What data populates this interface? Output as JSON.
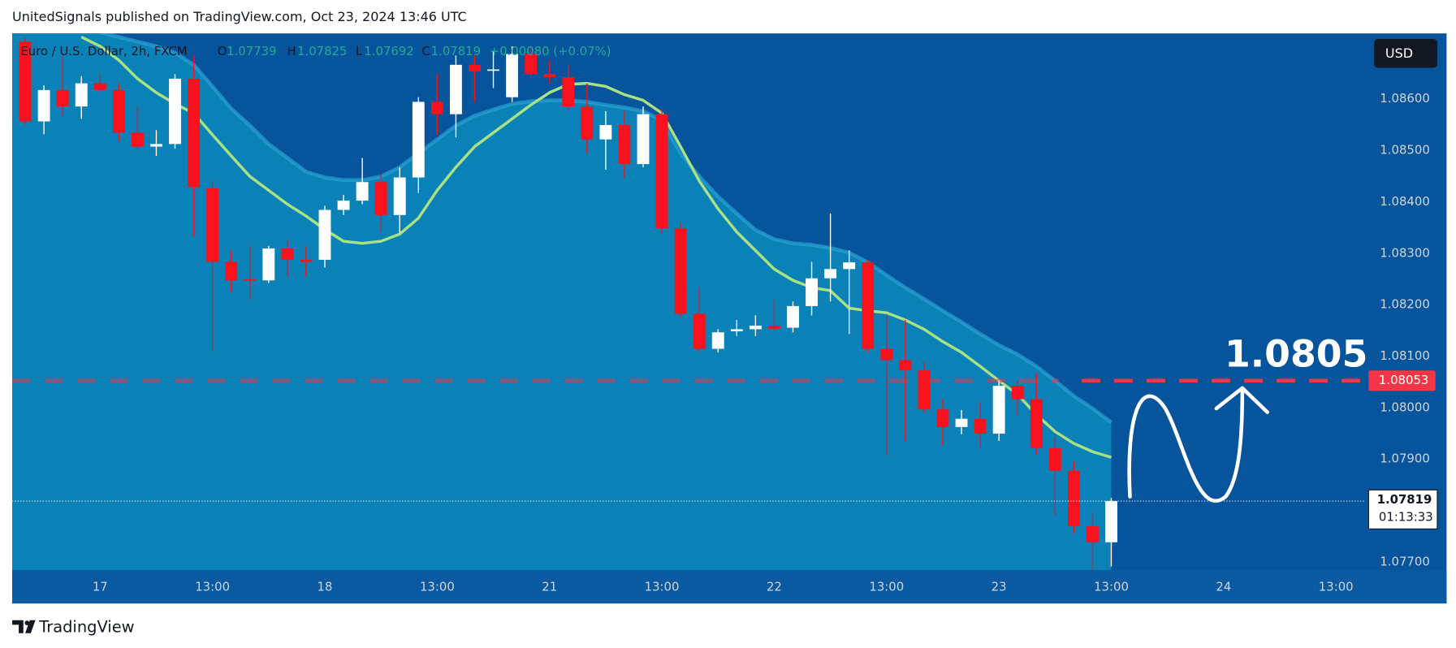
{
  "header": {
    "title": "UnitedSignals published on TradingView.com, Oct 23, 2024 13:46 UTC",
    "brand": "TradingView"
  },
  "chart_data": {
    "type": "candlestick",
    "symbol": "Euro / U.S. Dollar, 2h, FXCM",
    "legend_labels": [
      "O",
      "H",
      "L",
      "C"
    ],
    "change": "+0.00080 (+0.07%)",
    "currency": "USD",
    "countdown": "01:13:33",
    "annotation": "1.0805",
    "up_color": "#ffffff",
    "down_color": "#f7121e",
    "ema_color": "#a9e184",
    "band_color": "#0b82b7",
    "categories": [
      null,
      null,
      null,
      null,
      "17",
      null,
      null,
      null,
      null,
      null,
      "13:00",
      null,
      null,
      null,
      null,
      null,
      "18",
      null,
      null,
      null,
      null,
      null,
      "13:00",
      null,
      null,
      null,
      null,
      null,
      "21",
      null,
      null,
      null,
      null,
      null,
      "13:00",
      null,
      null,
      null,
      null,
      null,
      "22",
      null,
      null,
      null,
      null,
      null,
      "13:00",
      null,
      null,
      null,
      null,
      null,
      "23",
      null,
      null,
      null,
      null,
      null,
      "13:00",
      null,
      null,
      null,
      null,
      null,
      "24",
      null,
      null,
      null,
      null,
      null,
      "13:00"
    ],
    "open": [
      1.08712,
      1.08557,
      1.08618,
      1.08586,
      1.08631,
      1.08618,
      1.08535,
      1.08508,
      1.08513,
      1.0864,
      1.08427,
      1.08284,
      1.0825,
      1.08248,
      1.0831,
      1.08288,
      1.08288,
      1.08385,
      1.08403,
      1.08439,
      1.08375,
      1.08448,
      1.08595,
      1.08571,
      1.08667,
      1.08656,
      1.08604,
      1.08688,
      1.08649,
      1.08643,
      1.08586,
      1.08522,
      1.0855,
      1.08474,
      1.08571,
      1.08349,
      1.08183,
      1.08115,
      1.08149,
      1.08153,
      1.0816,
      1.08156,
      1.08198,
      1.08252,
      1.0827,
      1.08283,
      1.08115,
      1.08093,
      1.08073,
      1.07997,
      1.07963,
      1.07979,
      1.0795,
      1.08043,
      1.08017,
      1.07922,
      1.07878,
      1.0777,
      1.07739,
      null,
      null,
      null,
      null,
      null,
      null,
      null,
      null,
      null,
      null,
      null,
      null
    ],
    "high": [
      1.0872,
      1.08627,
      1.08685,
      1.08645,
      1.08649,
      1.08631,
      1.08586,
      1.0854,
      1.08649,
      1.08685,
      1.08441,
      1.08306,
      1.08315,
      1.08315,
      1.08328,
      1.08315,
      1.08393,
      1.08414,
      1.08486,
      1.08454,
      1.08468,
      1.08604,
      1.08649,
      1.08685,
      1.08685,
      1.08694,
      1.08703,
      1.08703,
      1.08676,
      1.08667,
      1.08631,
      1.08577,
      1.08577,
      1.08586,
      1.0858,
      1.0836,
      1.08234,
      1.08153,
      1.08171,
      1.0818,
      1.0821,
      1.08207,
      1.08284,
      1.08378,
      1.08306,
      1.08288,
      1.0818,
      1.08171,
      1.0809,
      1.08017,
      1.07996,
      1.08012,
      1.08053,
      1.08053,
      1.08068,
      1.07945,
      1.07896,
      1.07797,
      1.07825,
      null,
      null,
      null,
      null,
      null,
      null,
      null,
      null,
      null,
      null,
      null,
      null
    ],
    "low": [
      1.0855,
      1.08532,
      1.08566,
      1.08562,
      1.08613,
      1.08519,
      1.08501,
      1.0849,
      1.08504,
      1.08333,
      1.08111,
      1.08225,
      1.0821,
      1.08243,
      1.08255,
      1.08255,
      1.08273,
      1.08375,
      1.08396,
      1.08342,
      1.0834,
      1.08418,
      1.08531,
      1.08526,
      1.08595,
      1.08622,
      1.08595,
      1.0864,
      1.08631,
      1.08577,
      1.08495,
      1.08463,
      1.08447,
      1.08468,
      1.08338,
      1.08176,
      1.08108,
      1.08108,
      1.0814,
      1.0814,
      1.08149,
      1.08147,
      1.0818,
      1.08207,
      1.08144,
      1.08108,
      1.07908,
      1.07935,
      1.0799,
      1.07927,
      1.07949,
      1.07922,
      1.07936,
      1.07985,
      1.07909,
      1.0779,
      1.07756,
      1.07685,
      1.07692,
      null,
      null,
      null,
      null,
      null,
      null,
      null,
      null,
      null,
      null,
      null,
      null
    ],
    "close": [
      1.08557,
      1.08618,
      1.08586,
      1.08631,
      1.08618,
      1.08535,
      1.08508,
      1.08513,
      1.0864,
      1.08429,
      1.08284,
      1.08248,
      1.08248,
      1.0831,
      1.08288,
      1.08284,
      1.08385,
      1.08403,
      1.08439,
      1.08375,
      1.08448,
      1.08595,
      1.08571,
      1.08667,
      1.08654,
      1.08658,
      1.08688,
      1.08649,
      1.08643,
      1.08586,
      1.08522,
      1.0855,
      1.08474,
      1.08571,
      1.08349,
      1.08183,
      1.08115,
      1.08147,
      1.08153,
      1.0816,
      1.08154,
      1.08198,
      1.08252,
      1.0827,
      1.08283,
      1.08115,
      1.08093,
      1.08073,
      1.07997,
      1.07963,
      1.07979,
      1.0795,
      1.08043,
      1.08017,
      1.07922,
      1.07878,
      1.0777,
      1.07739,
      1.07819,
      null,
      null,
      null,
      null,
      null,
      null,
      null,
      null,
      null,
      null,
      null,
      null
    ],
    "ema": [
      null,
      null,
      null,
      1.08721,
      1.08703,
      1.08676,
      1.0864,
      1.08613,
      1.08591,
      1.08573,
      1.08531,
      1.0849,
      1.0845,
      1.08423,
      1.08396,
      1.08373,
      1.08347,
      1.08324,
      1.0832,
      1.08324,
      1.08338,
      1.08369,
      1.08423,
      1.08468,
      1.08508,
      1.08535,
      1.08562,
      1.08589,
      1.08613,
      1.08629,
      1.08631,
      1.08625,
      1.08609,
      1.08598,
      1.08573,
      1.08508,
      1.08441,
      1.08387,
      1.08342,
      1.08306,
      1.0827,
      1.08248,
      1.08234,
      1.08228,
      1.08194,
      1.08189,
      1.08185,
      1.08171,
      1.08153,
      1.08129,
      1.08108,
      1.08081,
      1.08053,
      1.08026,
      1.07987,
      1.07954,
      1.07931,
      1.07915,
      1.07904,
      null,
      null,
      null,
      null,
      null,
      null,
      null,
      null,
      null,
      null,
      null,
      null
    ],
    "band": [
      1.08775,
      1.08766,
      1.08757,
      1.08743,
      1.0873,
      1.08721,
      1.08712,
      1.08703,
      1.0869,
      1.08667,
      1.08625,
      1.08582,
      1.08549,
      1.08513,
      1.08486,
      1.08459,
      1.08448,
      1.08443,
      1.08443,
      1.0845,
      1.08468,
      1.08495,
      1.08522,
      1.08549,
      1.08568,
      1.0858,
      1.08591,
      1.08596,
      1.08598,
      1.08598,
      1.08595,
      1.08589,
      1.08584,
      1.08577,
      1.08559,
      1.08495,
      1.0845,
      1.08411,
      1.08378,
      1.08346,
      1.08328,
      1.0832,
      1.08317,
      1.08311,
      1.08302,
      1.08283,
      1.08258,
      1.08234,
      1.08212,
      1.08189,
      1.08167,
      1.08144,
      1.08122,
      1.08104,
      1.08081,
      1.08053,
      1.08023,
      1.07999,
      1.07972,
      null,
      null,
      null,
      null,
      null,
      null,
      null,
      null,
      null,
      null,
      null,
      null
    ],
    "hline": {
      "value": 1.08053,
      "color": "#f23645"
    },
    "ylim": [
      1.07685,
      1.08728
    ],
    "yticks": [
      {
        "value": 1.077,
        "label": "1.07700"
      },
      {
        "value": 1.078,
        "label": "1.07800"
      },
      {
        "value": 1.079,
        "label": "1.07900"
      },
      {
        "value": 1.08,
        "label": "1.08000"
      },
      {
        "value": 1.081,
        "label": "1.08100"
      },
      {
        "value": 1.082,
        "label": "1.08200"
      },
      {
        "value": 1.083,
        "label": "1.08300"
      },
      {
        "value": 1.084,
        "label": "1.08400"
      },
      {
        "value": 1.085,
        "label": "1.08500"
      },
      {
        "value": 1.086,
        "label": "1.08600"
      }
    ],
    "grid": false
  }
}
